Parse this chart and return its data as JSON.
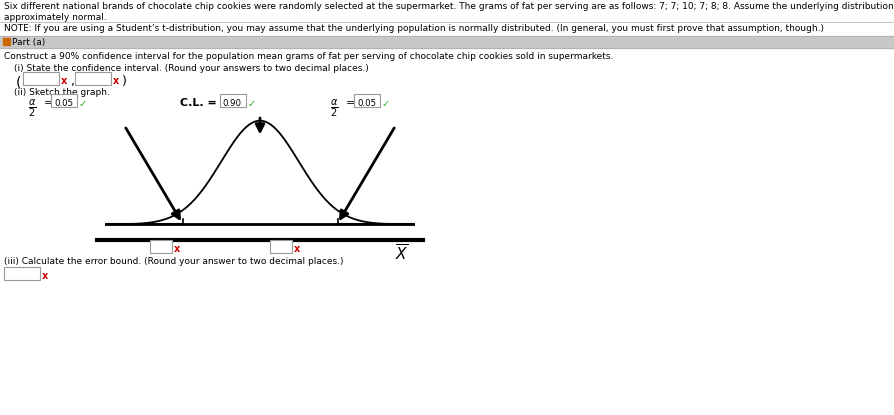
{
  "title_line1": "Six different national brands of chocolate chip cookies were randomly selected at the supermarket. The grams of fat per serving are as follows: 7; 7; 10; 7; 8; 8. Assume the underlying distribution is",
  "title_line2": "approximately normal.",
  "note_line": "NOTE: If you are using a Student’s t-distribution, you may assume that the underlying population is normally distributed. (In general, you must first prove that assumption, though.)",
  "part_a_label": "□ Part (a)",
  "construct_text": "Construct a 90% confidence interval for the population mean grams of fat per serving of chocolate chip cookies sold in supermarkets.",
  "state_ci_text": "(i) State the confidence interval. (Round your answers to two decimal places.)",
  "sketch_text": "(ii) Sketch the graph.",
  "alpha_half_val": "0.05",
  "cl_val": "0.90",
  "error_bound_text": "(iii) Calculate the error bound. (Round your answer to two decimal places.)",
  "check_color": "#22aa22",
  "x_color": "#cc0000",
  "part_a_bg": "#c8c8c8",
  "curve_color": "#222222",
  "arrow_color": "#111111"
}
